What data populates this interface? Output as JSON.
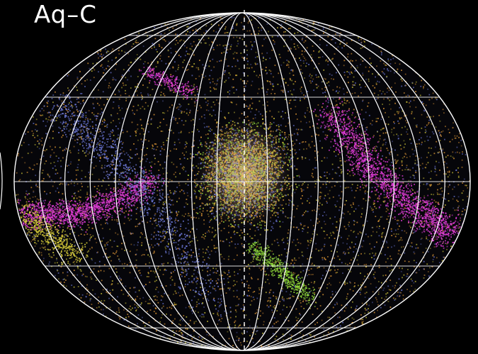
{
  "panel": {
    "label": "Aq–C"
  },
  "projection": "aitoff-hammer",
  "graticule": {
    "meridians": 18,
    "parallels": 5,
    "line_color": "#ffffff"
  },
  "colors": {
    "background": "#000000",
    "orange_stars": "#f2a43a",
    "yellow_stars": "#d9cf3a",
    "magenta_stream": "#e23cd8",
    "blue_stars": "#6c78d8",
    "green_stream": "#8fd83a"
  },
  "features": [
    {
      "name": "central-bulge",
      "color": "#f2a43a"
    },
    {
      "name": "magenta-stream-right",
      "color": "#e23cd8"
    },
    {
      "name": "magenta-stream-left",
      "color": "#e23cd8"
    },
    {
      "name": "green-stream-lower",
      "color": "#8fd83a"
    },
    {
      "name": "blue-band",
      "color": "#6c78d8"
    }
  ]
}
